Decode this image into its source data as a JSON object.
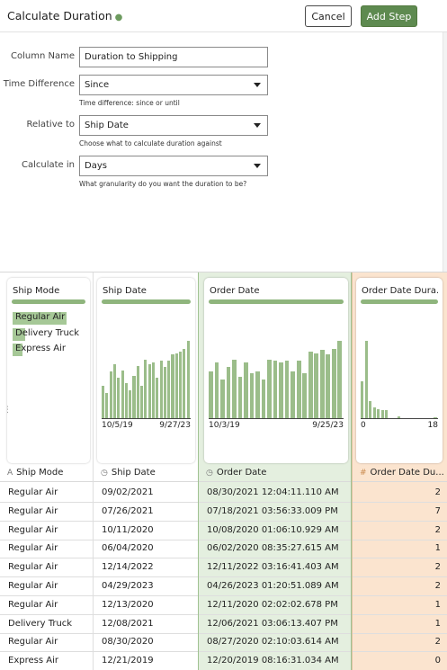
{
  "header": {
    "title": "Calculate Duration",
    "status_dot": "●",
    "cancel_label": "Cancel",
    "add_step_label": "Add Step"
  },
  "form": {
    "column_name_label": "Column Name",
    "column_name_value": "Duration to Shipping",
    "time_difference_label": "Time Difference",
    "time_difference_value": "Since",
    "time_difference_hint": "Time difference: since or until",
    "relative_to_label": "Relative to",
    "relative_to_value": "Ship Date",
    "relative_to_hint": "Choose what to calculate duration against",
    "calculate_in_label": "Calculate in",
    "calculate_in_value": "Days",
    "calculate_in_hint": "What granularity do you want the duration to be?"
  },
  "columns": {
    "ship_mode": {
      "card_title": "Ship Mode",
      "header": "Ship Mode",
      "type_icon": "A",
      "categories": [
        {
          "label": "Regular Air",
          "share": 0.85
        },
        {
          "label": "Delivery Truck",
          "share": 0.2
        },
        {
          "label": "Express Air",
          "share": 0.15
        }
      ]
    },
    "ship_date": {
      "card_title": "Ship Date",
      "header": "Ship Date",
      "type_icon": "◷",
      "axis_min": "10/5/19",
      "axis_max": "9/27/23",
      "histogram": [
        0.42,
        0.32,
        0.6,
        0.7,
        0.52,
        0.62,
        0.45,
        0.36,
        0.55,
        0.68,
        0.42,
        0.76,
        0.7,
        0.72,
        0.52,
        0.74,
        0.66,
        0.74,
        0.82,
        0.84,
        0.86,
        0.9,
        1.0
      ]
    },
    "order_date": {
      "card_title": "Order Date",
      "header": "Order Date",
      "type_icon": "◷",
      "axis_min": "10/3/19",
      "axis_max": "9/25/23",
      "histogram": [
        0.6,
        0.72,
        0.5,
        0.66,
        0.76,
        0.54,
        0.72,
        0.58,
        0.6,
        0.5,
        0.76,
        0.74,
        0.72,
        0.74,
        0.6,
        0.74,
        0.58,
        0.86,
        0.84,
        0.88,
        0.82,
        0.9,
        1.0
      ]
    },
    "duration": {
      "card_title": "Order Date Dura...",
      "header": "Order Date Du...",
      "type_icon": "#",
      "axis_min": "0",
      "axis_max": "18",
      "histogram": [
        0.48,
        1.0,
        0.22,
        0.14,
        0.12,
        0.1,
        0.1,
        0.0,
        0.0,
        0.02,
        0.0,
        0.0,
        0.0,
        0.0,
        0.0,
        0.0,
        0.0,
        0.0,
        0.01
      ]
    }
  },
  "rows": [
    {
      "ship_mode": "Regular Air",
      "ship_date": "09/02/2021",
      "order_date": "08/30/2021 12:04:11.110 AM",
      "duration": "2"
    },
    {
      "ship_mode": "Regular Air",
      "ship_date": "07/26/2021",
      "order_date": "07/18/2021 03:56:33.009 PM",
      "duration": "7"
    },
    {
      "ship_mode": "Regular Air",
      "ship_date": "10/11/2020",
      "order_date": "10/08/2020 01:06:10.929 AM",
      "duration": "2"
    },
    {
      "ship_mode": "Regular Air",
      "ship_date": "06/04/2020",
      "order_date": "06/02/2020 08:35:27.615 AM",
      "duration": "1"
    },
    {
      "ship_mode": "Regular Air",
      "ship_date": "12/14/2022",
      "order_date": "12/11/2022 03:16:41.403 AM",
      "duration": "2"
    },
    {
      "ship_mode": "Regular Air",
      "ship_date": "04/29/2023",
      "order_date": "04/26/2023 01:20:51.089 AM",
      "duration": "2"
    },
    {
      "ship_mode": "Regular Air",
      "ship_date": "12/13/2020",
      "order_date": "12/11/2020 02:02:02.678 PM",
      "duration": "1"
    },
    {
      "ship_mode": "Delivery Truck",
      "ship_date": "12/08/2021",
      "order_date": "12/06/2021 03:06:13.407 PM",
      "duration": "1"
    },
    {
      "ship_mode": "Regular Air",
      "ship_date": "08/30/2020",
      "order_date": "08/27/2020 02:10:03.614 AM",
      "duration": "2"
    },
    {
      "ship_mode": "Express Air",
      "ship_date": "12/21/2019",
      "order_date": "12/20/2019 08:16:31.034 AM",
      "duration": "0"
    }
  ],
  "colors": {
    "accent_green": "#5e8a50",
    "bar_green": "#9bbd8a",
    "selected_column_bg": "#e4efdf",
    "new_column_bg": "#fbe4cf"
  }
}
